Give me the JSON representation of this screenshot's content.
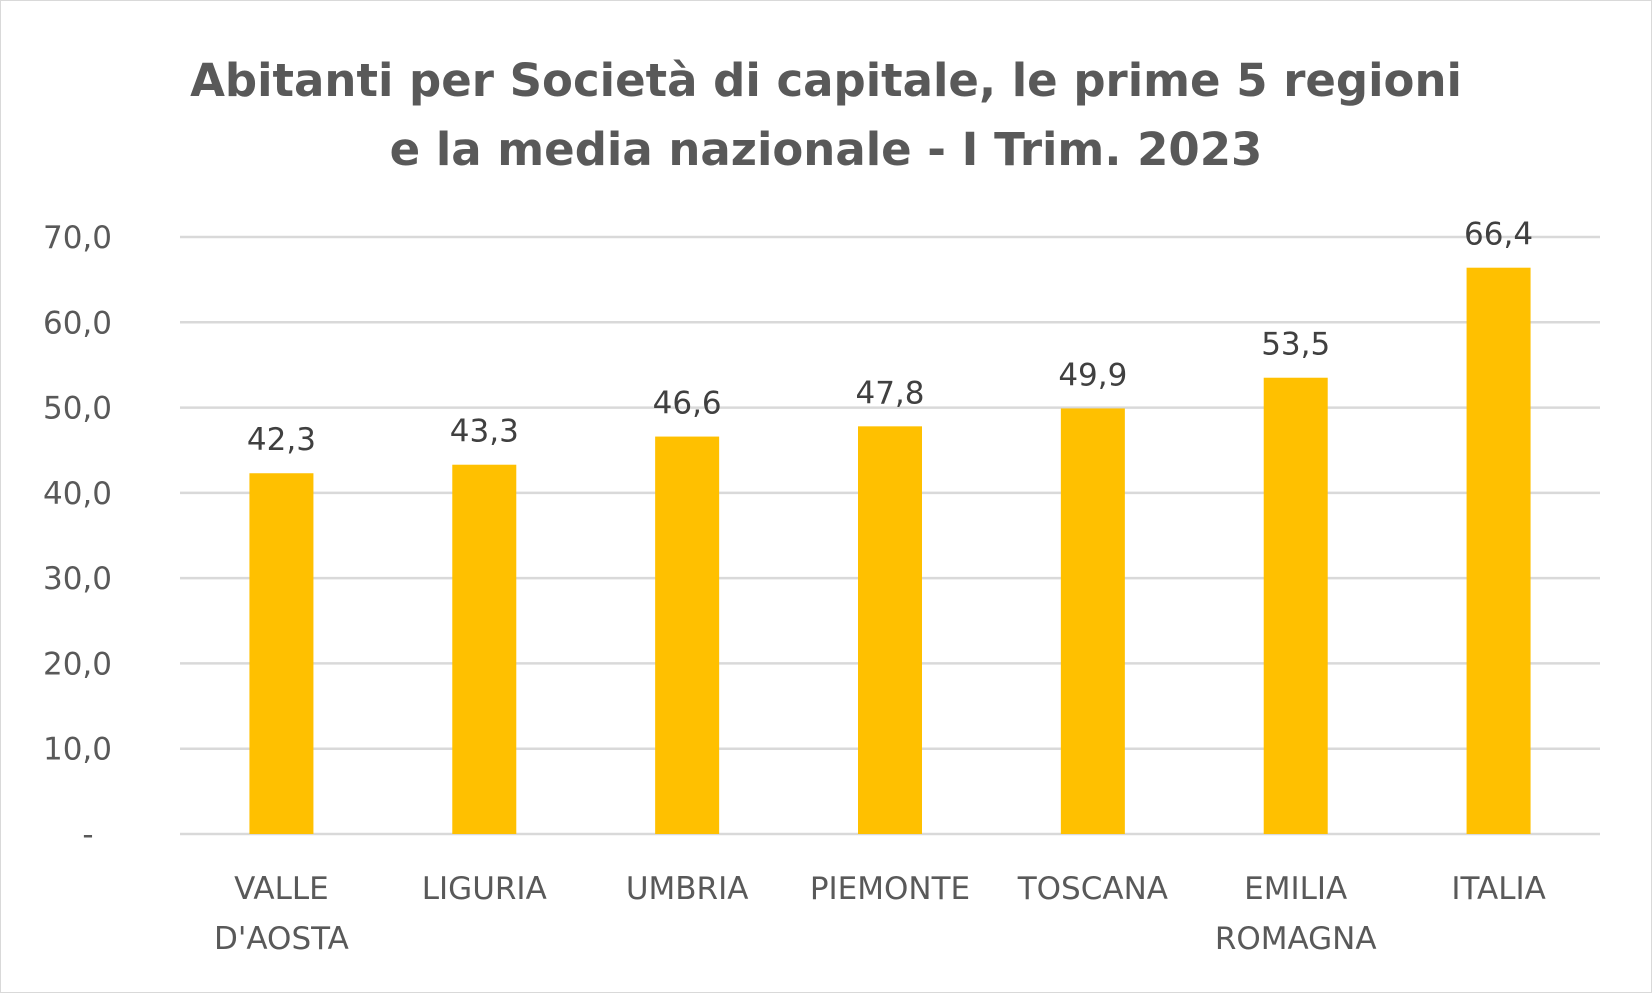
{
  "chart_data": {
    "type": "bar",
    "title_lines": [
      "Abitanti per Società di capitale, le prime 5 regioni",
      "e la media nazionale - I Trim. 2023"
    ],
    "categories": [
      [
        "VALLE",
        "D'AOSTA"
      ],
      [
        "LIGURIA"
      ],
      [
        "UMBRIA"
      ],
      [
        "PIEMONTE"
      ],
      [
        "TOSCANA"
      ],
      [
        "EMILIA",
        "ROMAGNA"
      ],
      [
        "ITALIA"
      ]
    ],
    "values": [
      42.3,
      43.3,
      46.6,
      47.8,
      49.9,
      53.5,
      66.4
    ],
    "data_labels": [
      "42,3",
      "43,3",
      "46,6",
      "47,8",
      "49,9",
      "53,5",
      "66,4"
    ],
    "yticks": [
      {
        "value": 0,
        "label": "-"
      },
      {
        "value": 10,
        "label": "10,0"
      },
      {
        "value": 20,
        "label": "20,0"
      },
      {
        "value": 30,
        "label": "30,0"
      },
      {
        "value": 40,
        "label": "40,0"
      },
      {
        "value": 50,
        "label": "50,0"
      },
      {
        "value": 60,
        "label": "60,0"
      },
      {
        "value": 70,
        "label": "70,0"
      }
    ],
    "ylim": [
      0,
      70
    ],
    "grid": true,
    "legend": "none",
    "colors": {
      "bar": "#FFC000",
      "grid": "#D9D9D9",
      "text": "#595959",
      "data_label": "#404040"
    }
  }
}
